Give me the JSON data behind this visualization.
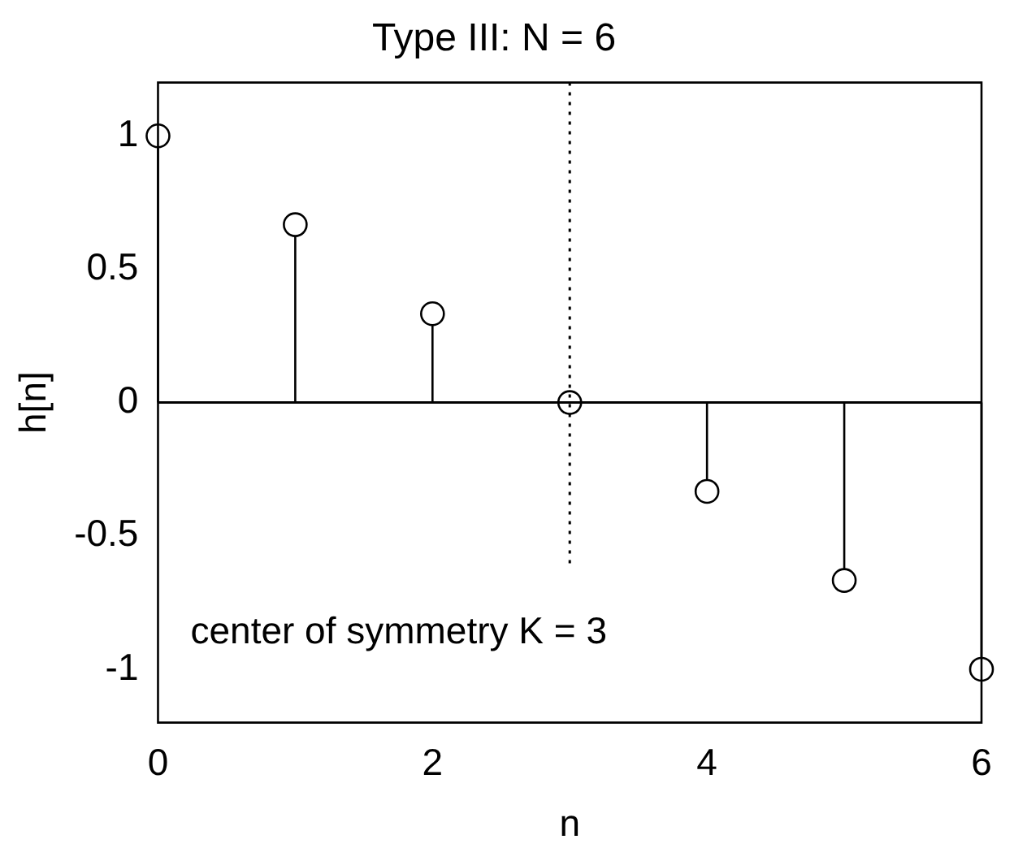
{
  "chart_data": {
    "type": "lollipop",
    "title": "Type III: N = 6",
    "xlabel": "n",
    "ylabel": "h[n]",
    "x": [
      0,
      1,
      2,
      3,
      4,
      5,
      6
    ],
    "values": [
      1,
      0.667,
      0.333,
      0,
      -0.333,
      -0.667,
      -1
    ],
    "color": "#000000",
    "marker": "circle",
    "xlim": [
      0,
      6
    ],
    "xticks": [
      0,
      2,
      4,
      6
    ],
    "ylim": [
      -1.2,
      1.2
    ],
    "yticks": [
      -1,
      -0.5,
      0,
      0.5,
      1
    ],
    "ref_lines": [
      {
        "axis": "y",
        "value": 0,
        "line_style": "solid",
        "color": "#000000"
      },
      {
        "axis": "x",
        "value": 3,
        "label": "center of symmetry K = 3",
        "line_style": "dotted",
        "color": "#000000"
      }
    ],
    "grid": false,
    "legend": false
  }
}
